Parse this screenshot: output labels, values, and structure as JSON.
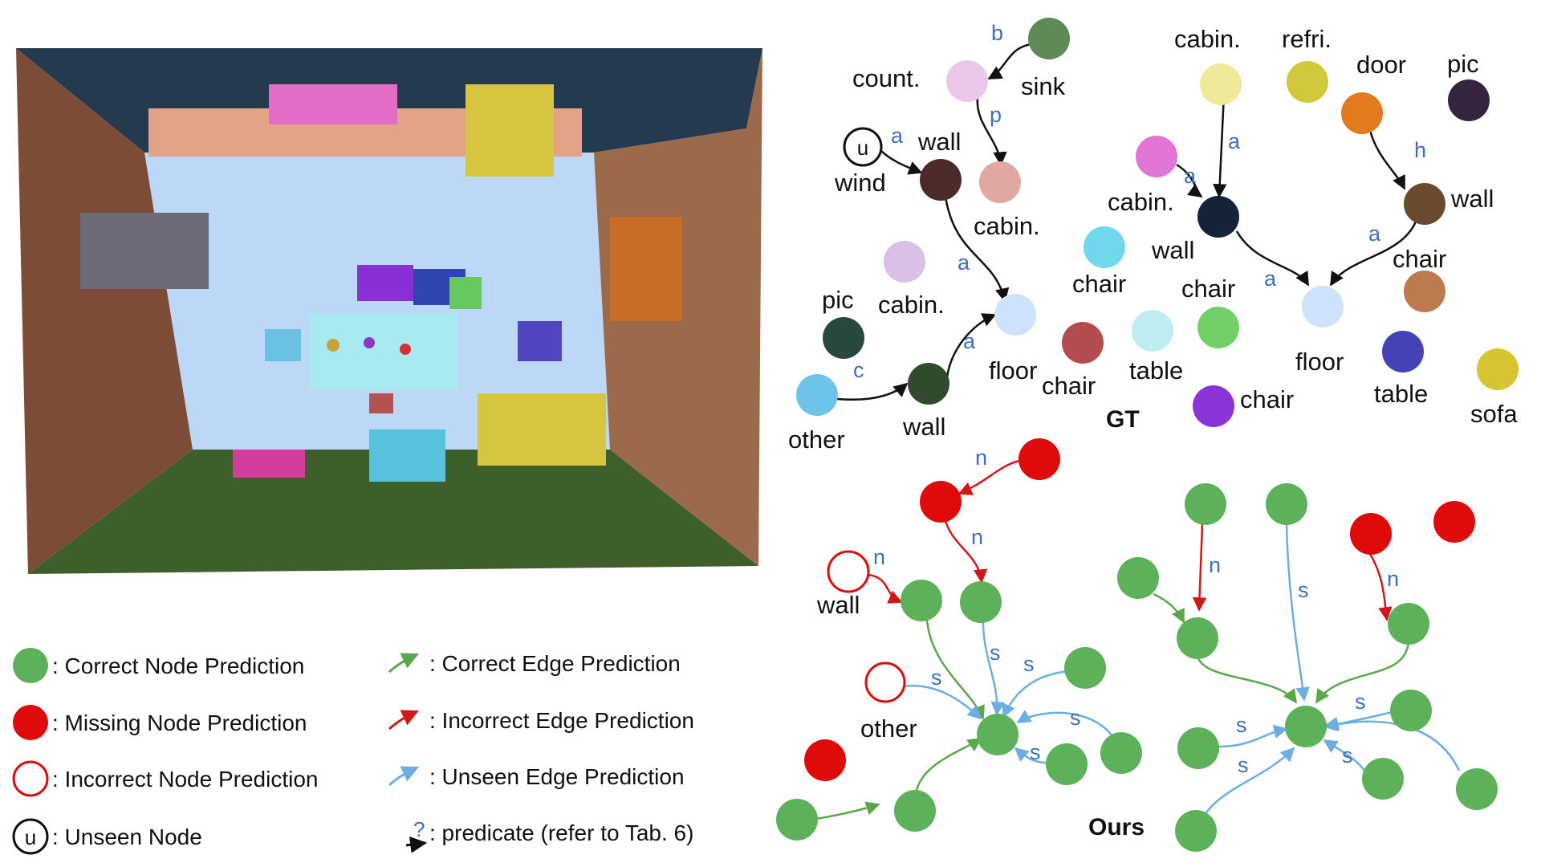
{
  "colors": {
    "correct_node": "#5db15a",
    "missing_node": "#df0a0a",
    "incorrect_node_stroke": "#df0a0a",
    "correct_edge": "#5aa84b",
    "incorrect_edge": "#d01818",
    "unseen_edge": "#6aaee3",
    "gt_edge": "#111111",
    "predicate_text": "#3d6fc0"
  },
  "scene": {
    "description_icon": "3d-room-reconstruction"
  },
  "gt": {
    "title": "GT",
    "labels": {
      "count": "count.",
      "sink": "sink",
      "wall1": "wall",
      "wind": "wind",
      "cabin1": "cabin.",
      "cabin2": "cabin.",
      "pic1": "pic",
      "floor1": "floor",
      "other": "other",
      "wall2": "wall",
      "cabin3": "cabin.",
      "refri": "refri.",
      "door": "door",
      "pic2": "pic",
      "cabin4": "cabin.",
      "wall3": "wall",
      "wall4": "wall",
      "chair1": "chair",
      "chair2": "chair",
      "chair3": "chair",
      "floor2": "floor",
      "chair4": "chair",
      "table1": "table",
      "chair5": "chair",
      "table2": "table",
      "sofa": "sofa",
      "unseen_marker": "u"
    },
    "predicates": {
      "b": "b",
      "p": "p",
      "a1": "a",
      "a2": "a",
      "a3": "a",
      "c": "c",
      "a4": "a",
      "a5": "a",
      "h": "h",
      "a6": "a",
      "a7": "a"
    }
  },
  "ours": {
    "title": "Ours",
    "labels": {
      "wall": "wall",
      "other": "other"
    },
    "predicates": {
      "n1": "n",
      "n2": "n",
      "n3": "n",
      "n4": "n",
      "n5": "n",
      "s1": "s",
      "s2": "s",
      "s3": "s",
      "s4": "s",
      "s5": "s",
      "s6": "s",
      "s7": "s",
      "s8": "s",
      "s9": "s",
      "s10": "s"
    }
  },
  "legend": {
    "correct_node": ": Correct Node Prediction",
    "missing_node": ": Missing Node Prediction",
    "incorrect_node": ": Incorrect Node Prediction",
    "unseen_node": ": Unseen Node",
    "unseen_node_marker": "u",
    "correct_edge": ": Correct Edge Prediction",
    "incorrect_edge": ": Incorrect Edge Prediction",
    "unseen_edge": ": Unseen Edge Prediction",
    "predicate": ": predicate (refer to Tab. 6)",
    "predicate_marker": "?"
  }
}
